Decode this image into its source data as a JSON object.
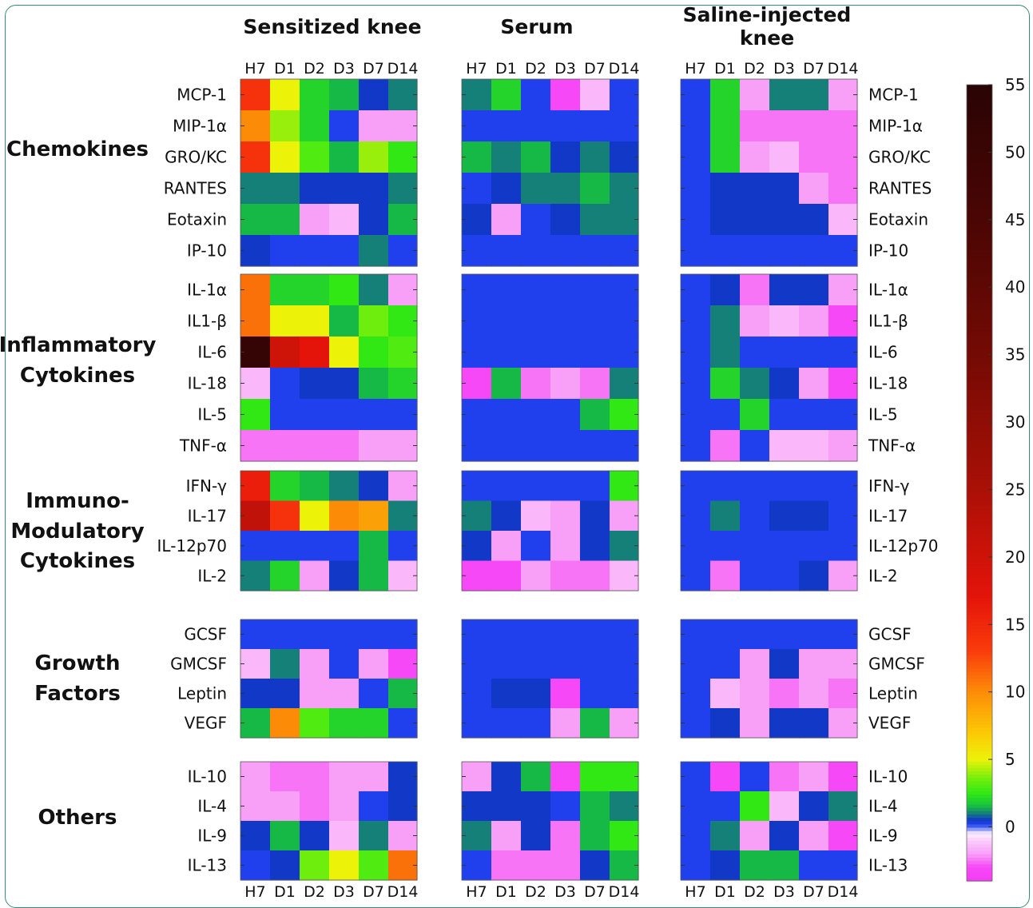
{
  "chart_data": {
    "type": "heatmap",
    "panels": [
      {
        "title": "Sensitized knee"
      },
      {
        "title": "Serum"
      },
      {
        "title": "Saline-injected knee"
      }
    ],
    "timepoints": [
      "H7",
      "D1",
      "D2",
      "D3",
      "D7",
      "D14"
    ],
    "groups": [
      {
        "name": "Chemokines",
        "rows": [
          "MCP-1",
          "MIP-1α",
          "GRO/KC",
          "RANTES",
          "Eotaxin",
          "IP-10"
        ]
      },
      {
        "name": "Inflammatory Cytokines",
        "rows": [
          "IL-1α",
          "IL1-β",
          "IL-6",
          "IL-18",
          "IL-5",
          "TNF-α"
        ]
      },
      {
        "name": "Immuno-Modulatory Cytokines",
        "rows": [
          "IFN-γ",
          "IL-17",
          "IL-12p70",
          "IL-2"
        ]
      },
      {
        "name": "Growth Factors",
        "rows": [
          "GCSF",
          "GMCSF",
          "Leptin",
          "VEGF"
        ]
      },
      {
        "name": "Others",
        "rows": [
          "IL-10",
          "IL-4",
          "IL-9",
          "IL-13"
        ]
      }
    ],
    "values": [
      [
        [
          [
            14,
            5,
            2,
            1.5,
            0.5,
            1
          ],
          [
            10,
            4,
            2,
            0.2,
            -2,
            -2
          ],
          [
            14,
            5,
            3,
            1.5,
            4,
            2.5
          ],
          [
            1,
            1,
            0.5,
            0.5,
            0.5,
            1
          ],
          [
            1.5,
            1.5,
            -2,
            -1.5,
            0.5,
            1.5
          ],
          [
            0.5,
            0.2,
            0.2,
            0.2,
            1,
            0.2
          ]
        ],
        [
          [
            11,
            2,
            2,
            2.5,
            1,
            -2
          ],
          [
            11,
            5,
            5,
            1.5,
            3.5,
            2.5
          ],
          [
            52,
            20,
            17,
            5,
            2.5,
            3
          ],
          [
            -1.5,
            0.2,
            0.5,
            0.5,
            1.5,
            2
          ],
          [
            2.5,
            0.2,
            0.2,
            0.2,
            0.2,
            0.2
          ],
          [
            -2.5,
            -2.5,
            -2.5,
            -2.5,
            -2,
            -2
          ]
        ],
        [
          [
            16,
            2,
            1.5,
            1,
            0.5,
            -2
          ],
          [
            22,
            14,
            5,
            10,
            9,
            1
          ],
          [
            0.2,
            0.2,
            0.2,
            0.2,
            1.5,
            0.2
          ],
          [
            1,
            2,
            -2,
            0.5,
            1.5,
            -1.5
          ]
        ],
        [
          [
            0.2,
            0.2,
            0.2,
            0.2,
            0.2,
            0.2
          ],
          [
            -1.5,
            1,
            -2,
            0.2,
            -2,
            -3
          ],
          [
            0.5,
            0.5,
            -2,
            -2,
            0.2,
            1.5
          ],
          [
            1.5,
            10,
            3,
            2,
            2,
            0.2
          ]
        ],
        [
          [
            -2,
            -2.5,
            -2.5,
            -2,
            -2,
            0.5
          ],
          [
            -2,
            -2,
            -2.5,
            -2,
            0.2,
            0.5
          ],
          [
            0.5,
            1.5,
            0.5,
            -1.5,
            1,
            -2
          ],
          [
            0.2,
            0.5,
            3.5,
            5,
            3,
            11
          ]
        ]
      ],
      [
        [
          [
            1,
            2,
            0.2,
            -3,
            -1.5,
            0.2
          ],
          [
            0.2,
            0.2,
            0.2,
            0.2,
            0.2,
            0.2
          ],
          [
            1.5,
            1,
            1.5,
            0.5,
            1,
            0.5
          ],
          [
            0.2,
            0.5,
            1,
            1,
            1.5,
            1
          ],
          [
            0.5,
            -2,
            0.2,
            0.5,
            1,
            1
          ],
          [
            0.2,
            0.2,
            0.2,
            0.2,
            0.2,
            0.2
          ]
        ],
        [
          [
            0.2,
            0.2,
            0.2,
            0.2,
            0.2,
            0.2
          ],
          [
            0.2,
            0.2,
            0.2,
            0.2,
            0.2,
            0.2
          ],
          [
            0.2,
            0.2,
            0.2,
            0.2,
            0.2,
            0.2
          ],
          [
            -3,
            1.5,
            -2.5,
            -2,
            -2.5,
            1
          ],
          [
            0.2,
            0.2,
            0.2,
            0.2,
            1.5,
            2.5
          ],
          [
            0.2,
            0.2,
            0.2,
            0.2,
            0.2,
            0.2
          ]
        ],
        [
          [
            0.2,
            0.2,
            0.2,
            0.2,
            0.2,
            2.5
          ],
          [
            1,
            0.5,
            -1.5,
            -2,
            0.5,
            -2
          ],
          [
            0.5,
            -2,
            0.2,
            -2,
            0.5,
            1
          ],
          [
            -3,
            -3,
            -2,
            -2.5,
            -2.5,
            -1.5
          ]
        ],
        [
          [
            0.2,
            0.2,
            0.2,
            0.2,
            0.2,
            0.2
          ],
          [
            0.2,
            0.2,
            0.2,
            0.2,
            0.2,
            0.2
          ],
          [
            0.2,
            0.5,
            0.5,
            -3,
            0.2,
            0.2
          ],
          [
            0.2,
            0.2,
            0.2,
            -2,
            1.5,
            -2
          ]
        ],
        [
          [
            -2,
            0.5,
            1.5,
            -3,
            2.5,
            2.5
          ],
          [
            0.5,
            0.5,
            0.5,
            0.2,
            1.5,
            1
          ],
          [
            1,
            -2,
            0.5,
            -2.5,
            1.5,
            2.5
          ],
          [
            0.2,
            -2.5,
            -2.5,
            -2.5,
            0.5,
            1.5
          ]
        ]
      ],
      [
        [
          [
            0.2,
            2,
            -2,
            1,
            1,
            -2
          ],
          [
            0.2,
            2,
            -2.5,
            -2.5,
            -2.5,
            -2.5
          ],
          [
            0.2,
            2,
            -2,
            -1.5,
            -2.5,
            -2.5
          ],
          [
            0.2,
            0.5,
            0.5,
            0.5,
            -2,
            -2.5
          ],
          [
            0.2,
            0.5,
            0.5,
            0.5,
            0.5,
            -1.5
          ],
          [
            0.2,
            0.2,
            0.2,
            0.2,
            0.2,
            0.2
          ]
        ],
        [
          [
            0.2,
            0.5,
            -2.5,
            0.5,
            0.5,
            -2
          ],
          [
            0.2,
            1,
            -2,
            -1.5,
            -2,
            -3
          ],
          [
            0.2,
            1,
            0.2,
            0.2,
            0.2,
            0.2
          ],
          [
            0.2,
            2,
            1,
            0.5,
            -2,
            -3
          ],
          [
            0.2,
            0.2,
            2,
            0.2,
            0.2,
            0.2
          ],
          [
            0.2,
            -2.5,
            0.2,
            -1.5,
            -1.5,
            -2
          ]
        ],
        [
          [
            0.2,
            0.2,
            0.2,
            0.2,
            0.2,
            0.2
          ],
          [
            0.2,
            1,
            0.2,
            0.5,
            0.5,
            0.2
          ],
          [
            0.2,
            0.2,
            0.2,
            0.2,
            0.2,
            0.2
          ],
          [
            0.2,
            -2.5,
            0.2,
            0.2,
            0.5,
            -2
          ]
        ],
        [
          [
            0.2,
            0.2,
            0.2,
            0.2,
            0.2,
            0.2
          ],
          [
            0.2,
            0.2,
            -2,
            0.5,
            -2,
            -2
          ],
          [
            0.2,
            -1.5,
            -2,
            -2.5,
            -2,
            -2.5
          ],
          [
            0.2,
            0.5,
            -2,
            0.5,
            0.5,
            -2
          ]
        ],
        [
          [
            0.2,
            -3,
            0.2,
            -2.5,
            -2,
            -3
          ],
          [
            0.2,
            0.2,
            2.5,
            -1.5,
            0.5,
            1
          ],
          [
            0.2,
            1,
            -2,
            0.5,
            -2,
            -3
          ],
          [
            0.2,
            0.5,
            1.5,
            1.5,
            0.2,
            0.2
          ]
        ]
      ]
    ],
    "colorbar": {
      "ticks": [
        "55",
        "50",
        "45",
        "40",
        "35",
        "30",
        "25",
        "20",
        "15",
        "10",
        "5",
        "0"
      ],
      "tick_values": [
        55,
        50,
        45,
        40,
        35,
        30,
        25,
        20,
        15,
        10,
        5,
        0
      ],
      "range": [
        -4,
        55
      ]
    },
    "colors": {
      "frame": "#3a8a7a"
    }
  }
}
